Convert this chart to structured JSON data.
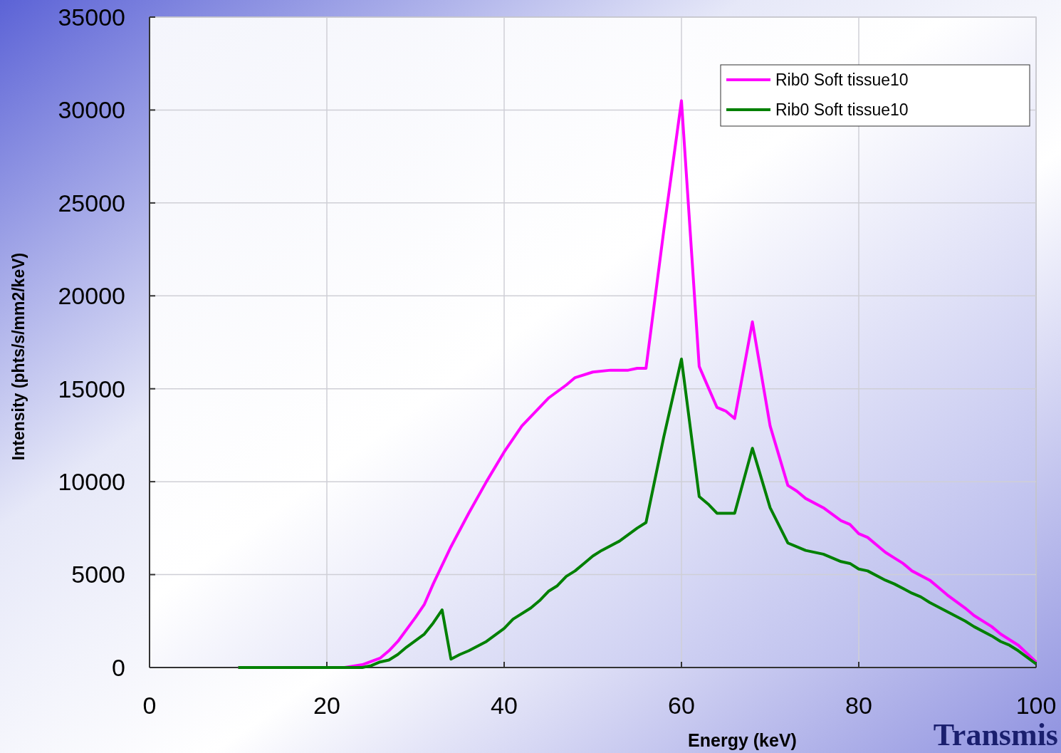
{
  "chart_data": {
    "type": "line",
    "xlabel": "Energy (keV)",
    "ylabel": "Intensity (phts/s/mm2/keV)",
    "xlim": [
      0,
      100
    ],
    "xticks": [
      0,
      20,
      40,
      60,
      80,
      100
    ],
    "ylim": [
      0,
      35000
    ],
    "yticks": [
      0,
      5000,
      10000,
      15000,
      20000,
      25000,
      30000,
      35000
    ],
    "grid": true,
    "legend": "top right",
    "line_style": "solid",
    "annotations": [
      "Transmis"
    ],
    "series": [
      {
        "name": "Rib0 Soft tissue10",
        "color": "#ff00ff",
        "x": [
          10,
          20,
          22,
          24,
          26,
          27,
          28,
          30,
          31,
          32,
          34,
          36,
          38,
          40,
          42,
          44,
          45,
          47,
          48,
          50,
          52,
          54,
          55,
          56,
          58,
          60,
          62,
          63,
          64,
          65,
          66,
          68,
          70,
          72,
          73,
          74,
          76,
          78,
          79,
          80,
          81,
          83,
          84,
          85,
          86,
          88,
          89,
          90,
          92,
          93,
          95,
          96,
          98,
          100
        ],
        "values": [
          0,
          0,
          0,
          150,
          500,
          900,
          1400,
          2700,
          3400,
          4500,
          6500,
          8300,
          10000,
          11600,
          13000,
          14000,
          14500,
          15200,
          15600,
          15900,
          16000,
          16000,
          16100,
          16100,
          23500,
          30500,
          16200,
          15100,
          14000,
          13800,
          13400,
          18600,
          13000,
          9800,
          9500,
          9100,
          8600,
          7900,
          7700,
          7200,
          7000,
          6200,
          5900,
          5600,
          5200,
          4700,
          4300,
          3900,
          3200,
          2800,
          2200,
          1800,
          1200,
          300
        ]
      },
      {
        "name": "Rib0 Soft tissue10",
        "color": "#008000",
        "x": [
          10,
          20,
          24,
          25,
          26,
          27,
          28,
          29,
          31,
          32,
          33,
          34,
          35,
          36,
          38,
          40,
          41,
          43,
          44,
          45,
          46,
          47,
          48,
          49,
          50,
          51,
          53,
          55,
          56,
          58,
          60,
          62,
          63,
          64,
          66,
          68,
          70,
          72,
          74,
          76,
          77,
          78,
          79,
          80,
          81,
          83,
          84,
          86,
          87,
          88,
          90,
          92,
          93,
          95,
          96,
          97,
          98,
          100
        ],
        "values": [
          0,
          0,
          0,
          100,
          300,
          400,
          700,
          1100,
          1800,
          2400,
          3100,
          450,
          700,
          900,
          1400,
          2100,
          2600,
          3200,
          3600,
          4100,
          4400,
          4900,
          5200,
          5600,
          6000,
          6300,
          6800,
          7500,
          7800,
          12400,
          16600,
          9200,
          8800,
          8300,
          8300,
          11800,
          8600,
          6700,
          6300,
          6100,
          5900,
          5700,
          5600,
          5300,
          5200,
          4700,
          4500,
          4000,
          3800,
          3500,
          3000,
          2500,
          2200,
          1700,
          1400,
          1200,
          900,
          200
        ]
      }
    ]
  }
}
